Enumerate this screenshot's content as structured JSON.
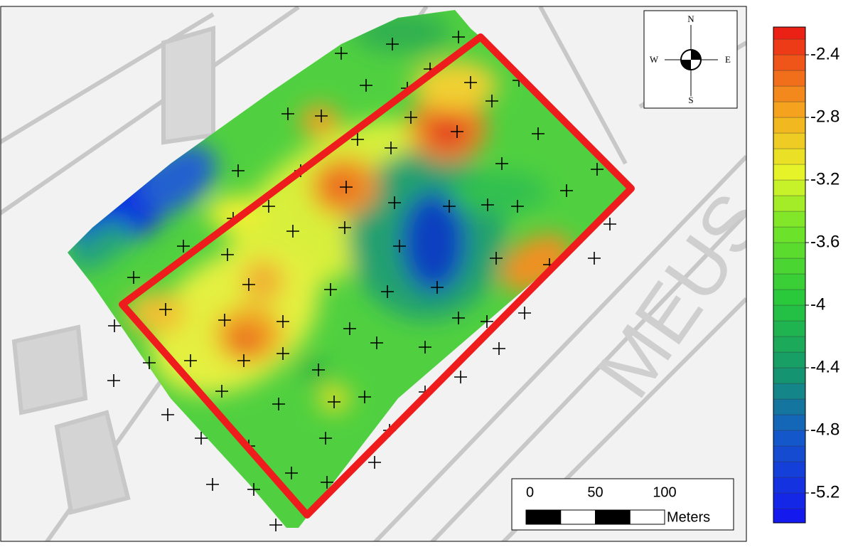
{
  "map": {
    "background_label": "MEUS",
    "compass": {
      "north": "N",
      "south": "S",
      "east": "E",
      "west": "W"
    },
    "scale_bar": {
      "ticks": [
        0,
        50,
        100
      ],
      "unit": "Meters"
    }
  },
  "legend": {
    "lim": [
      -5.4,
      -2.2
    ],
    "ticks": [
      -2.4,
      -2.8,
      -3.2,
      -3.6,
      -4,
      -4.4,
      -4.8,
      -5.2
    ]
  }
}
